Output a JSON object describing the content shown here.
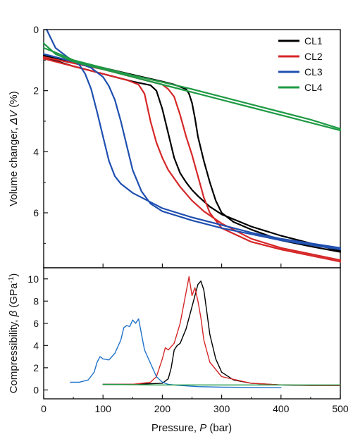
{
  "chart_data": [
    {
      "type": "line",
      "ylabel": "Volume changer, ΔV (%)",
      "ylabel_parts": [
        "Volume changer, ",
        "ΔV",
        " (%)"
      ],
      "xlim": [
        0,
        500
      ],
      "ylim": [
        0,
        7.8
      ],
      "y_inverted": true,
      "yticks": [
        "0",
        "2",
        "4",
        "6"
      ],
      "ytick_values": [
        0,
        2,
        4,
        6
      ],
      "legend_placement": "top-right",
      "series": [
        {
          "name": "CL1",
          "color": "#000000",
          "compression": {
            "x": [
              0,
              50,
              100,
              150,
              180,
              190,
              200,
              210,
              220,
              230,
              240,
              250,
              260,
              280,
              300,
              350,
              400,
              450,
              500
            ],
            "y": [
              0.9,
              1.2,
              1.45,
              1.7,
              1.82,
              2.0,
              2.6,
              3.4,
              4.2,
              4.7,
              5.0,
              5.25,
              5.45,
              5.8,
              6.05,
              6.45,
              6.75,
              7.0,
              7.25
            ]
          },
          "decompression": {
            "x": [
              500,
              450,
              400,
              350,
              320,
              300,
              290,
              280,
              270,
              260,
              255,
              250,
              245,
              240,
              220,
              200,
              150,
              100,
              50,
              0
            ],
            "y": [
              7.28,
              7.1,
              6.9,
              6.55,
              6.3,
              6.0,
              5.6,
              5.0,
              4.3,
              3.5,
              2.9,
              2.4,
              2.1,
              1.95,
              1.8,
              1.7,
              1.48,
              1.25,
              1.05,
              0.85
            ]
          }
        },
        {
          "name": "CL2",
          "color": "#d62728",
          "compression": {
            "x": [
              0,
              50,
              100,
              140,
              160,
              170,
              180,
              190,
              200,
              210,
              230,
              250,
              270,
              300,
              350,
              400,
              450,
              500
            ],
            "y": [
              0.95,
              1.2,
              1.45,
              1.65,
              1.8,
              2.1,
              3.0,
              3.7,
              4.2,
              4.6,
              5.15,
              5.6,
              5.95,
              6.35,
              6.85,
              7.15,
              7.35,
              7.55
            ]
          },
          "decompression": {
            "x": [
              500,
              450,
              400,
              350,
              300,
              280,
              270,
              260,
              250,
              240,
              230,
              220,
              210,
              200,
              150,
              100,
              50,
              0
            ],
            "y": [
              7.6,
              7.4,
              7.2,
              6.95,
              6.5,
              6.0,
              5.5,
              4.8,
              4.1,
              3.5,
              2.8,
              2.2,
              1.95,
              1.8,
              1.55,
              1.3,
              1.1,
              0.9
            ]
          }
        },
        {
          "name": "CL3",
          "color": "#1f4fb0",
          "compression": {
            "x": [
              5,
              20,
              40,
              60,
              70,
              80,
              90,
              100,
              110,
              120,
              130,
              150,
              180,
              200,
              250,
              300,
              350,
              400,
              450,
              500
            ],
            "y": [
              0.0,
              0.6,
              0.9,
              1.15,
              1.45,
              1.95,
              2.7,
              3.5,
              4.3,
              4.8,
              5.05,
              5.35,
              5.65,
              5.85,
              6.15,
              6.4,
              6.65,
              6.85,
              7.0,
              7.15
            ]
          },
          "decompression": {
            "x": [
              500,
              450,
              400,
              350,
              300,
              250,
              200,
              180,
              165,
              150,
              140,
              130,
              120,
              110,
              100,
              80,
              60,
              40,
              20,
              0
            ],
            "y": [
              7.2,
              7.05,
              6.9,
              6.7,
              6.5,
              6.25,
              5.95,
              5.7,
              5.3,
              4.6,
              3.8,
              3.0,
              2.3,
              1.85,
              1.55,
              1.25,
              1.1,
              1.0,
              0.9,
              0.8
            ]
          }
        },
        {
          "name": "CL4",
          "color": "#1f9a45",
          "compression": {
            "x": [
              0,
              20,
              50,
              100,
              150,
              200,
              250,
              300,
              350,
              400,
              450,
              500
            ],
            "y": [
              0.45,
              0.8,
              1.05,
              1.3,
              1.55,
              1.8,
              2.05,
              2.3,
              2.55,
              2.8,
              3.05,
              3.3
            ]
          },
          "decompression": {
            "x": [
              500,
              450,
              400,
              350,
              300,
              250,
              200,
              150,
              100,
              50,
              20,
              0
            ],
            "y": [
              3.25,
              2.95,
              2.7,
              2.45,
              2.2,
              1.95,
              1.72,
              1.5,
              1.25,
              1.0,
              0.75,
              0.6
            ]
          }
        }
      ]
    },
    {
      "type": "line",
      "xlabel": "Pressure, P (bar)",
      "xlabel_parts": [
        "Pressure, ",
        "P",
        " (bar)"
      ],
      "ylabel": "Compressibility, β (GPa⁻¹)",
      "ylabel_parts": [
        "Compressibility, ",
        "β",
        " (GPa",
        "-1",
        ")"
      ],
      "xlim": [
        0,
        500
      ],
      "ylim": [
        -0.8,
        11
      ],
      "xticks": [
        "0",
        "100",
        "200",
        "300",
        "400",
        "500"
      ],
      "xtick_values": [
        0,
        100,
        200,
        300,
        400,
        500
      ],
      "yticks": [
        "0",
        "2",
        "4",
        "6",
        "8",
        "10"
      ],
      "ytick_values": [
        0,
        2,
        4,
        6,
        8,
        10
      ],
      "series": [
        {
          "name": "CL1",
          "color": "#000000",
          "x": [
            100,
            150,
            200,
            210,
            215,
            220,
            225,
            230,
            240,
            250,
            255,
            260,
            265,
            270,
            275,
            280,
            290,
            300,
            320,
            350,
            400,
            450,
            500
          ],
          "y": [
            0.5,
            0.5,
            0.6,
            1.0,
            2.0,
            3.6,
            4.0,
            4.2,
            5.5,
            7.5,
            8.5,
            9.5,
            9.8,
            9.0,
            7.0,
            5.0,
            2.8,
            1.6,
            0.9,
            0.6,
            0.45,
            0.4,
            0.4
          ]
        },
        {
          "name": "CL2",
          "color": "#d62728",
          "x": [
            100,
            150,
            180,
            190,
            200,
            205,
            210,
            220,
            230,
            240,
            245,
            250,
            255,
            260,
            265,
            270,
            280,
            300,
            350,
            400,
            450,
            500
          ],
          "y": [
            0.5,
            0.5,
            0.7,
            1.2,
            2.8,
            3.8,
            3.6,
            4.2,
            6.0,
            8.8,
            10.2,
            8.5,
            9.2,
            8.0,
            6.5,
            4.5,
            2.5,
            1.2,
            0.6,
            0.45,
            0.42,
            0.4
          ]
        },
        {
          "name": "CL3",
          "color": "#1f72c8",
          "x": [
            45,
            60,
            75,
            85,
            90,
            95,
            100,
            110,
            120,
            130,
            135,
            140,
            145,
            150,
            155,
            160,
            165,
            170,
            180,
            190,
            200,
            210,
            230,
            260,
            300,
            400
          ],
          "y": [
            0.7,
            0.7,
            0.9,
            1.6,
            2.5,
            3.0,
            2.8,
            2.7,
            3.3,
            4.5,
            5.6,
            5.8,
            5.7,
            6.3,
            6.0,
            6.4,
            5.0,
            3.6,
            2.4,
            1.2,
            0.7,
            0.5,
            0.4,
            0.3,
            0.25,
            0.2
          ]
        },
        {
          "name": "CL4",
          "color": "#1f9a45",
          "x": [
            100,
            200,
            300,
            400,
            500
          ],
          "y": [
            0.5,
            0.45,
            0.45,
            0.45,
            0.45
          ]
        }
      ]
    }
  ]
}
